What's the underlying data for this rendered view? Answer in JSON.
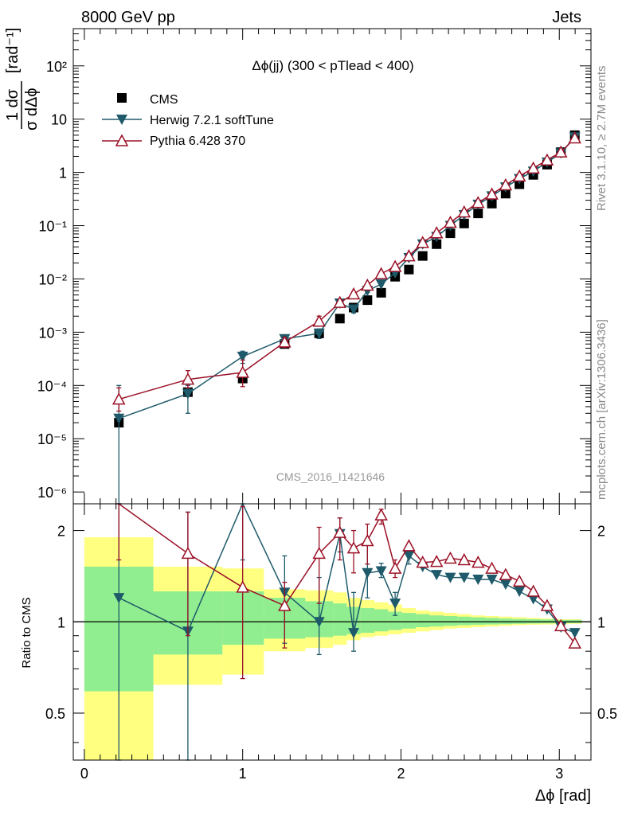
{
  "header": {
    "left": "8000 GeV pp",
    "right": "Jets"
  },
  "side_labels": {
    "rivet": "Rivet 3.1.10, ≥ 2.7M events",
    "mcplots": "mcplots.cern.ch [arXiv:1306.3436]"
  },
  "watermark": "CMS_2016_I1421646",
  "chart_data": [
    {
      "type": "scatter",
      "panel": "main",
      "title": "Δϕ(jj) (300 < pTlead <  400)",
      "ylabel": "1/σ dσ/dΔϕ [rad⁻¹]",
      "yscale": "log",
      "ylim": [
        6e-07,
        500
      ],
      "xlim": [
        -0.07,
        3.2
      ],
      "x": [
        0.218,
        0.654,
        1.0,
        1.265,
        1.483,
        1.614,
        1.701,
        1.788,
        1.875,
        1.963,
        2.05,
        2.137,
        2.225,
        2.312,
        2.399,
        2.487,
        2.574,
        2.661,
        2.748,
        2.836,
        2.923,
        3.01,
        3.098
      ],
      "series": [
        {
          "name": "CMS",
          "color": "#000000",
          "marker": "square",
          "values": [
            2e-05,
            7.5e-05,
            0.000135,
            0.0006,
            0.00095,
            0.0018,
            0.0029,
            0.004,
            0.0055,
            0.011,
            0.015,
            0.027,
            0.045,
            0.072,
            0.11,
            0.17,
            0.26,
            0.4,
            0.6,
            0.9,
            1.4,
            2.4,
            5.0
          ]
        },
        {
          "name": "Herwig 7.2.1 softTune",
          "color": "#1e5a6a",
          "marker": "triangle-down",
          "values": [
            2.4e-05,
            7e-05,
            0.00035,
            0.00075,
            0.00095,
            0.0035,
            0.0027,
            0.006,
            0.008,
            0.013,
            0.025,
            0.045,
            0.062,
            0.1,
            0.16,
            0.25,
            0.36,
            0.53,
            0.76,
            1.05,
            1.55,
            2.3,
            4.6
          ],
          "errors": [
            [
              0,
              0.0001
            ],
            [
              3e-05,
              0.0001
            ],
            [
              0.00026,
              0.00044
            ],
            [
              0.00062,
              0.00088
            ],
            [
              0.00076,
              0.00115
            ],
            [
              0.003,
              0.004
            ],
            [
              0.0023,
              0.0031
            ],
            [
              0.0056,
              0.0065
            ],
            [
              0.0076,
              0.0085
            ],
            [
              0.0125,
              0.0136
            ],
            null,
            null,
            null,
            null,
            null,
            null,
            null,
            null,
            null,
            null,
            null,
            null,
            null
          ]
        },
        {
          "name": "Pythia 6.428 370",
          "color": "#9b1026",
          "marker": "triangle-up-open",
          "values": [
            5.5e-05,
            0.00013,
            0.000175,
            0.00065,
            0.0016,
            0.0036,
            0.0052,
            0.0076,
            0.0125,
            0.017,
            0.027,
            0.048,
            0.073,
            0.115,
            0.18,
            0.27,
            0.39,
            0.58,
            0.85,
            1.2,
            1.7,
            2.4,
            4.4
          ],
          "errors": [
            [
              3.3e-05,
              9e-05
            ],
            [
              9e-05,
              0.00019
            ],
            [
              9.5e-05,
              0.0003
            ],
            [
              0.00052,
              0.0008
            ],
            [
              0.0013,
              0.002
            ],
            [
              0.0033,
              0.004
            ],
            [
              0.0048,
              0.0057
            ],
            [
              0.0072,
              0.0081
            ],
            [
              0.012,
              0.013
            ],
            null,
            null,
            null,
            null,
            null,
            null,
            null,
            null,
            null,
            null,
            null,
            null,
            null,
            null
          ]
        }
      ],
      "ytick_labels": [
        "10⁻⁶",
        "10⁻⁵",
        "10⁻⁴",
        "10⁻³",
        "10⁻²",
        "10⁻¹",
        "1",
        "10",
        "10²"
      ],
      "ytick_values": [
        1e-06,
        1e-05,
        0.0001,
        0.001,
        0.01,
        0.1,
        1,
        10,
        100
      ],
      "legend": [
        "CMS",
        "Herwig 7.2.1 softTune",
        "Pythia 6.428 370"
      ]
    },
    {
      "type": "line",
      "panel": "ratio",
      "ylabel": "Ratio to CMS",
      "xlabel": "Δϕ [rad]",
      "yscale": "log",
      "ylim": [
        0.35,
        2.45
      ],
      "xlim": [
        -0.07,
        3.2
      ],
      "x": [
        0.218,
        0.654,
        1.0,
        1.265,
        1.483,
        1.614,
        1.701,
        1.788,
        1.875,
        1.963,
        2.05,
        2.137,
        2.225,
        2.312,
        2.399,
        2.487,
        2.574,
        2.661,
        2.748,
        2.836,
        2.923,
        3.01,
        3.098
      ],
      "bin_edges": [
        0.0,
        0.436,
        0.872,
        1.134,
        1.396,
        1.571,
        1.658,
        1.745,
        1.832,
        1.919,
        2.007,
        2.094,
        2.181,
        2.269,
        2.356,
        2.443,
        2.531,
        2.618,
        2.705,
        2.793,
        2.88,
        2.967,
        3.054,
        3.142
      ],
      "band_inner": [
        [
          0.59,
          1.52
        ],
        [
          0.78,
          1.26
        ],
        [
          0.84,
          1.26
        ],
        [
          0.88,
          1.2
        ],
        [
          0.89,
          1.17
        ],
        [
          0.9,
          1.15
        ],
        [
          0.91,
          1.12
        ],
        [
          0.92,
          1.11
        ],
        [
          0.93,
          1.1
        ],
        [
          0.94,
          1.08
        ],
        [
          0.95,
          1.07
        ],
        [
          0.96,
          1.06
        ],
        [
          0.965,
          1.05
        ],
        [
          0.97,
          1.045
        ],
        [
          0.975,
          1.04
        ],
        [
          0.978,
          1.035
        ],
        [
          0.98,
          1.03
        ],
        [
          0.982,
          1.025
        ],
        [
          0.985,
          1.022
        ],
        [
          0.987,
          1.02
        ],
        [
          0.988,
          1.018
        ],
        [
          0.99,
          1.015
        ],
        [
          0.99,
          1.015
        ]
      ],
      "band_outer": [
        [
          0.33,
          1.9
        ],
        [
          0.62,
          1.52
        ],
        [
          0.67,
          1.5
        ],
        [
          0.8,
          1.28
        ],
        [
          0.82,
          1.27
        ],
        [
          0.84,
          1.25
        ],
        [
          0.87,
          1.2
        ],
        [
          0.89,
          1.18
        ],
        [
          0.9,
          1.16
        ],
        [
          0.91,
          1.14
        ],
        [
          0.92,
          1.11
        ],
        [
          0.93,
          1.09
        ],
        [
          0.94,
          1.08
        ],
        [
          0.95,
          1.07
        ],
        [
          0.955,
          1.06
        ],
        [
          0.96,
          1.05
        ],
        [
          0.965,
          1.045
        ],
        [
          0.97,
          1.04
        ],
        [
          0.975,
          1.035
        ],
        [
          0.978,
          1.03
        ],
        [
          0.98,
          1.025
        ],
        [
          0.982,
          1.02
        ],
        [
          0.985,
          1.02
        ]
      ],
      "band_colors": {
        "inner": "#90ee90",
        "outer": "#ffff80"
      },
      "reference": 1.0,
      "series": [
        {
          "name": "Herwig 7.2.1 softTune",
          "color": "#1e5a6a",
          "marker": "triangle-down",
          "values": [
            1.2,
            0.93,
            2.6,
            1.25,
            1.0,
            1.95,
            0.92,
            1.45,
            1.47,
            1.15,
            1.65,
            1.52,
            1.43,
            1.4,
            1.4,
            1.38,
            1.38,
            1.33,
            1.26,
            1.19,
            1.1,
            0.96,
            0.92
          ],
          "errors": [
            [
              0.3,
              2.5
            ],
            [
              0.3,
              2.3
            ],
            [
              1.6,
              2.6
            ],
            [
              0.85,
              1.65
            ],
            [
              0.78,
              1.4
            ],
            [
              1.7,
              2.2
            ],
            [
              0.8,
              1.25
            ],
            [
              1.2,
              1.8
            ],
            [
              1.4,
              1.56
            ],
            [
              1.05,
              1.25
            ],
            [
              1.55,
              1.75
            ],
            null,
            null,
            null,
            null,
            null,
            null,
            null,
            null,
            null,
            null,
            null,
            null
          ]
        },
        {
          "name": "Pythia 6.428 370",
          "color": "#9b1026",
          "marker": "triangle-up-open",
          "values": [
            2.6,
            1.68,
            1.3,
            1.13,
            1.68,
            1.97,
            1.75,
            1.85,
            2.25,
            1.5,
            1.78,
            1.57,
            1.58,
            1.62,
            1.6,
            1.57,
            1.5,
            1.43,
            1.36,
            1.26,
            1.13,
            0.97,
            0.85
          ],
          "errors": [
            [
              1.6,
              2.6
            ],
            [
              0.9,
              2.3
            ],
            [
              0.65,
              2.4
            ],
            [
              0.82,
              1.35
            ],
            [
              1.15,
              2.05
            ],
            [
              1.6,
              2.2
            ],
            [
              1.45,
              2.0
            ],
            [
              1.55,
              2.1
            ],
            [
              2.1,
              2.35
            ],
            [
              1.4,
              1.6
            ],
            null,
            null,
            null,
            null,
            null,
            null,
            null,
            null,
            null,
            null,
            null,
            null,
            null
          ]
        }
      ],
      "ytick_labels": [
        "0.5",
        "1",
        "2"
      ],
      "ytick_values": [
        0.5,
        1,
        2
      ],
      "xtick_labels": [
        "0",
        "1",
        "2",
        "3"
      ],
      "xtick_values": [
        0,
        1,
        2,
        3
      ]
    }
  ]
}
